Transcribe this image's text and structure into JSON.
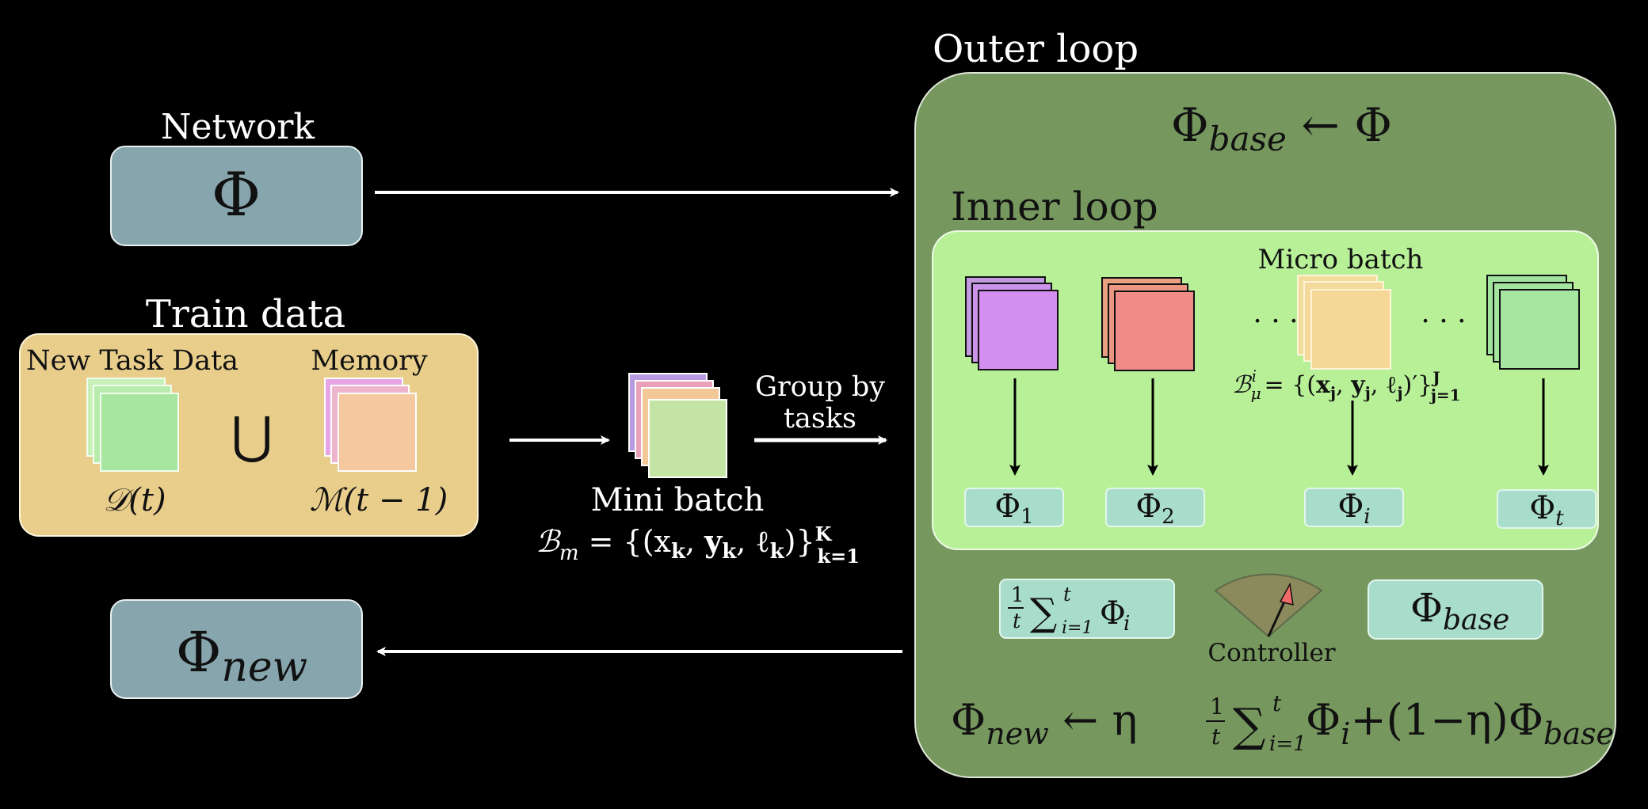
{
  "network": {
    "title": "Network",
    "symbol": "Φ"
  },
  "train_data": {
    "title": "Train data",
    "new_task_label": "New Task Data",
    "memory_label": "Memory",
    "union_symbol": "⋃",
    "new_task_formula": "𝒟(t)",
    "memory_formula": "ℳ(t − 1)"
  },
  "mini_batch": {
    "title": "Mini batch",
    "formula_main": "ℬ",
    "formula_sub": "m",
    "formula_body": " = {(x",
    "formula_tail": ")}"
  },
  "group_by": {
    "line1": "Group by",
    "line2": "tasks"
  },
  "outer_loop": {
    "title": "Outer loop",
    "base_assign": "Φ",
    "base_assign_sub": "base",
    "base_assign_arrow": " ← Φ",
    "controller_label": "Controller",
    "avg_formula": "∑",
    "phi_base": "Φ",
    "phi_base_sub": "base"
  },
  "inner_loop": {
    "title": "Inner loop",
    "micro_batch_label": "Micro batch",
    "ellipsis": "· · ·",
    "phi_labels": [
      {
        "main": "Φ",
        "sub": "1"
      },
      {
        "main": "Φ",
        "sub": "2"
      },
      {
        "main": "Φ",
        "sub": "i"
      },
      {
        "main": "Φ",
        "sub": "t"
      }
    ]
  },
  "update_rule": {
    "lhs": "Φ",
    "lhs_sub": "new",
    "arrow": " ← η",
    "sum": "∑",
    "mid": "Φ",
    "mid_sub": "i",
    "plus": "+(1−η)Φ",
    "base_sub": "base"
  },
  "output": {
    "symbol": "Φ",
    "sub": "new"
  },
  "colors": {
    "background": "#000000",
    "network_box": "#86a5ad",
    "train_box": "#e8cd8b",
    "outer_box": "#76985e",
    "inner_box": "#b8f098",
    "phi_chip": "#a8dccb",
    "purple": "#d48ef0",
    "red": "#f08c88",
    "yellow": "#f5d898",
    "green": "#a6e6a0"
  }
}
